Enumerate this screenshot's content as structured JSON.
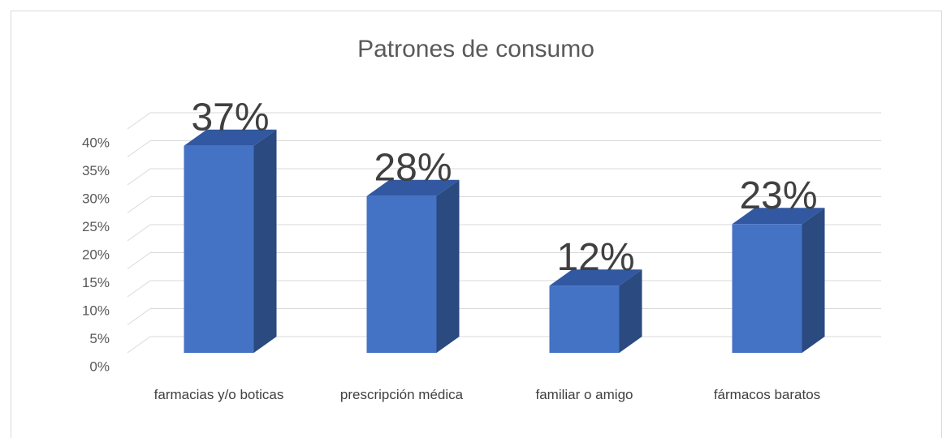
{
  "chart_data": {
    "type": "bar3d",
    "title": "Patrones de consumo",
    "categories": [
      "farmacias y/o boticas",
      "prescripción médica",
      "familiar o amigo",
      "fármacos baratos"
    ],
    "values": [
      37,
      28,
      12,
      23
    ],
    "value_labels": [
      "37%",
      "28%",
      "12%",
      "23%"
    ],
    "color": "#4472c4",
    "ylim": [
      0,
      40
    ],
    "yticks": [
      {
        "value": 0,
        "label": "0%"
      },
      {
        "value": 5,
        "label": "5%"
      },
      {
        "value": 10,
        "label": "10%"
      },
      {
        "value": 15,
        "label": "15%"
      },
      {
        "value": 20,
        "label": "20%"
      },
      {
        "value": 25,
        "label": "25%"
      },
      {
        "value": 30,
        "label": "30%"
      },
      {
        "value": 35,
        "label": "35%"
      },
      {
        "value": 40,
        "label": "40%"
      }
    ],
    "grid": true
  }
}
